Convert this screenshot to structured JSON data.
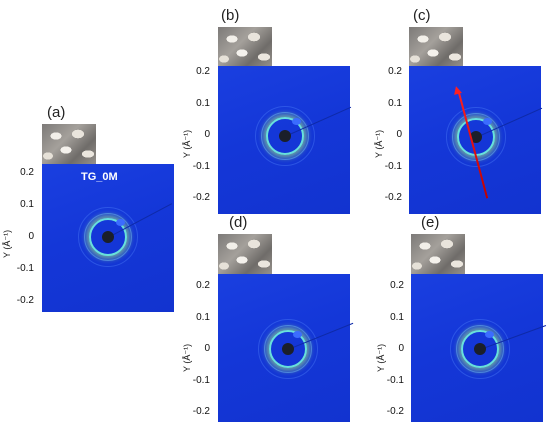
{
  "y_label": "Y (Å⁻¹)",
  "tick_labels": [
    "0.2",
    "0.1",
    "0",
    "-0.1",
    "-0.2"
  ],
  "panels": [
    {
      "id": "a",
      "label": "(a)",
      "tag": "TG_0M"
    },
    {
      "id": "b",
      "label": "(b)",
      "tag": ""
    },
    {
      "id": "c",
      "label": "(c)",
      "tag": ""
    },
    {
      "id": "d",
      "label": "(d)",
      "tag": ""
    },
    {
      "id": "e",
      "label": "(e)",
      "tag": ""
    }
  ]
}
